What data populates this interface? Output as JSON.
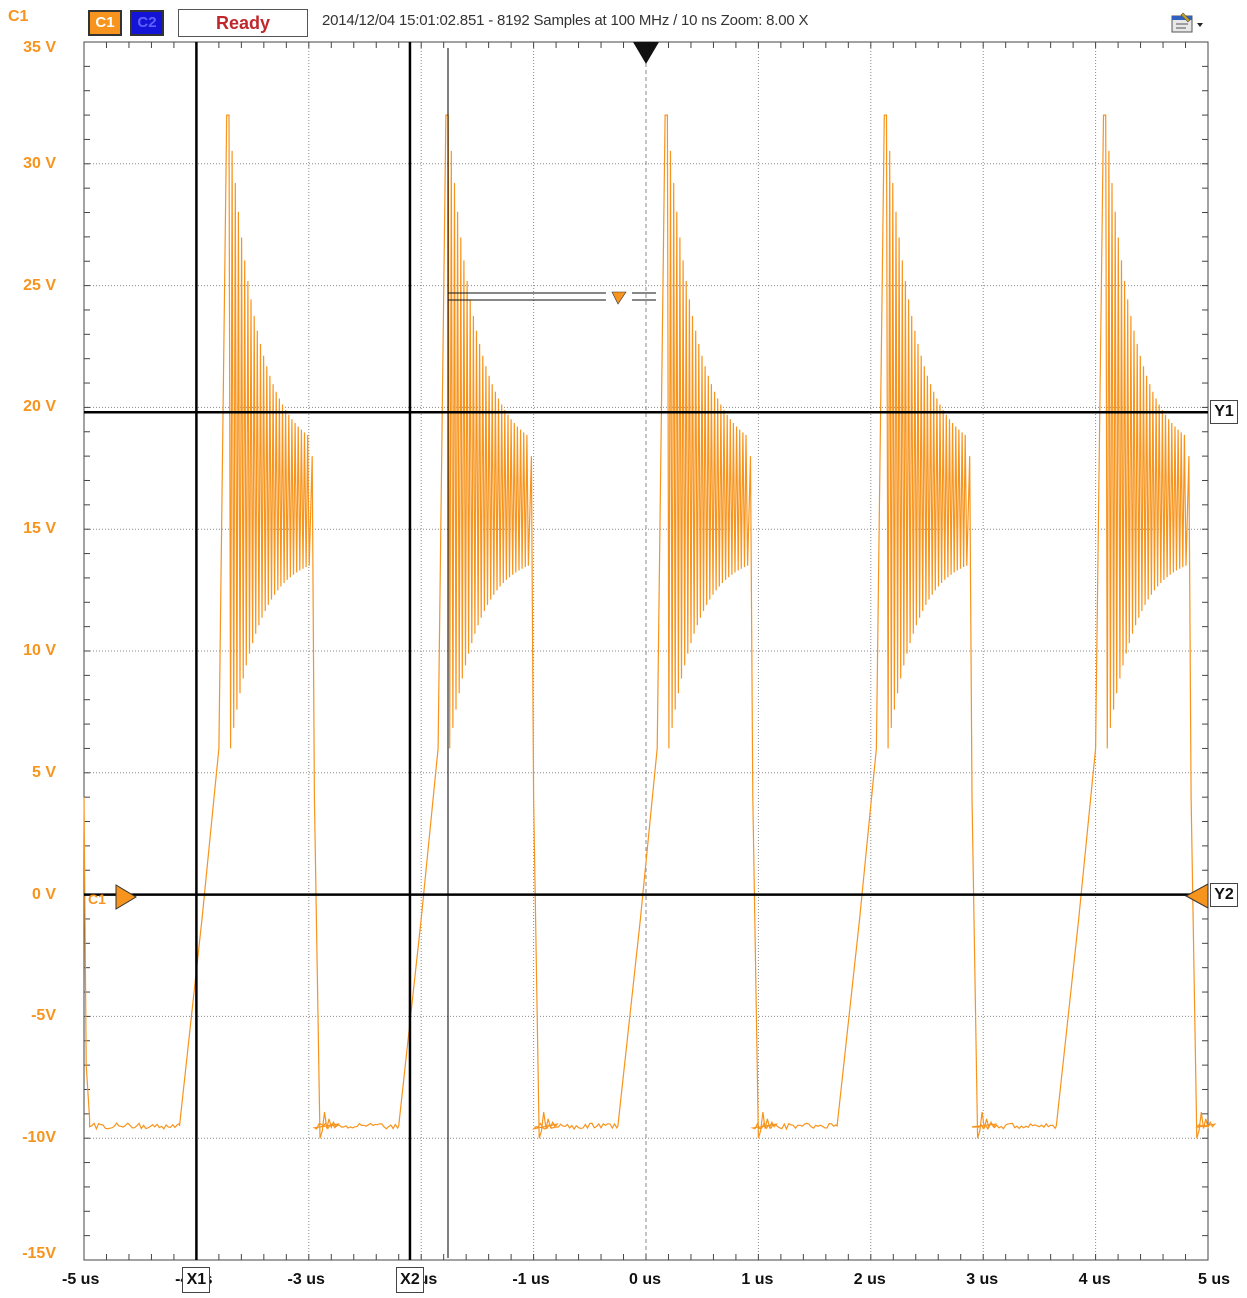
{
  "toolbar": {
    "channel_label": "C1",
    "c1_button": "C1",
    "c2_button": "C2",
    "status": "Ready",
    "acquisition_info": "2014/12/04  15:01:02.851 - 8192 Samples at 100 MHz / 10 ns Zoom: 8.00 X",
    "menu_icon": "settings-menu-icon"
  },
  "colors": {
    "trace": "#f7941d",
    "grid": "#888888",
    "cursor": "#000000",
    "c2": "#1414d8"
  },
  "axes": {
    "y_labels": [
      "35 V",
      "30 V",
      "25 V",
      "20 V",
      "15 V",
      "10 V",
      "5 V",
      "0 V",
      "-5V",
      "-10V",
      "-15V"
    ],
    "x_labels": [
      "-5 us",
      "-4 us",
      "-3 us",
      "-2 us",
      "-1 us",
      "0 us",
      "1 us",
      "2 us",
      "3 us",
      "4 us",
      "5 us"
    ]
  },
  "cursors": {
    "x1_label": "X1",
    "x1_value": -4.0,
    "x2_label": "X2",
    "x2_value": -2.1,
    "y1_label": "Y1",
    "y1_value": 19.8,
    "y2_label": "Y2",
    "y2_value": 0
  },
  "markers": {
    "channel_ground_label": "C1"
  },
  "chart_data": {
    "type": "line",
    "xlim": [
      -5,
      5
    ],
    "ylim": [
      -15,
      35
    ],
    "period_us": 1.95,
    "pulse_rise_times_us": [
      -3.95,
      -2.0,
      -0.05,
      1.9,
      3.85
    ],
    "low_level_v": -9.5,
    "peak_v": 33,
    "ringing_settle_v": 16
  }
}
